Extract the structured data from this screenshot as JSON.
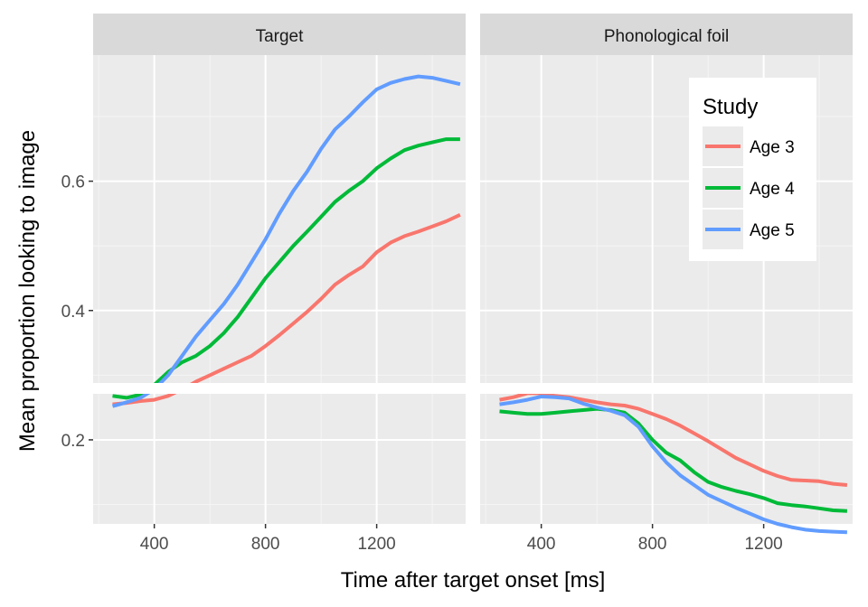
{
  "chart_data": {
    "type": "line",
    "xlabel": "Time after target onset [ms]",
    "ylabel": "Mean proportion looking to image",
    "xlim": [
      180,
      1520
    ],
    "ylim": [
      0.07,
      0.795
    ],
    "x_ticks": [
      400,
      800,
      1200
    ],
    "x_tick_labels": [
      "400",
      "800",
      "1200"
    ],
    "y_ticks": [
      0.2,
      0.4,
      0.6
    ],
    "y_tick_labels": [
      "0.2",
      "0.4",
      "0.6"
    ],
    "grid": true,
    "legend": {
      "title": "Study",
      "placement": "inside-top-right",
      "entries": [
        "Age 3",
        "Age 4",
        "Age 5"
      ]
    },
    "colors": {
      "Age 3": "#F8766D",
      "Age 4": "#00BA38",
      "Age 5": "#619CFF"
    },
    "panels": [
      {
        "title": "Target",
        "series": [
          {
            "name": "Age 3",
            "x": [
              250,
              300,
              350,
              400,
              450,
              500,
              550,
              600,
              650,
              700,
              750,
              800,
              850,
              900,
              950,
              1000,
              1050,
              1100,
              1150,
              1200,
              1250,
              1300,
              1350,
              1400,
              1450,
              1500
            ],
            "y": [
              0.255,
              0.257,
              0.26,
              0.262,
              0.268,
              0.278,
              0.29,
              0.3,
              0.31,
              0.32,
              0.33,
              0.345,
              0.362,
              0.38,
              0.398,
              0.418,
              0.44,
              0.455,
              0.468,
              0.49,
              0.505,
              0.515,
              0.522,
              0.53,
              0.538,
              0.548
            ]
          },
          {
            "name": "Age 4",
            "x": [
              250,
              300,
              350,
              400,
              450,
              500,
              550,
              600,
              650,
              700,
              750,
              800,
              850,
              900,
              950,
              1000,
              1050,
              1100,
              1150,
              1200,
              1250,
              1300,
              1350,
              1400,
              1450,
              1500
            ],
            "y": [
              0.268,
              0.265,
              0.27,
              0.285,
              0.305,
              0.32,
              0.33,
              0.345,
              0.365,
              0.39,
              0.42,
              0.45,
              0.475,
              0.5,
              0.522,
              0.545,
              0.568,
              0.585,
              0.6,
              0.62,
              0.635,
              0.648,
              0.655,
              0.66,
              0.665,
              0.665
            ]
          },
          {
            "name": "Age 5",
            "x": [
              250,
              300,
              350,
              400,
              450,
              500,
              550,
              600,
              650,
              700,
              750,
              800,
              850,
              900,
              950,
              1000,
              1050,
              1100,
              1150,
              1200,
              1250,
              1300,
              1350,
              1400,
              1450,
              1500
            ],
            "y": [
              0.252,
              0.258,
              0.265,
              0.278,
              0.3,
              0.33,
              0.36,
              0.385,
              0.41,
              0.44,
              0.475,
              0.51,
              0.55,
              0.585,
              0.615,
              0.65,
              0.68,
              0.7,
              0.722,
              0.742,
              0.752,
              0.758,
              0.762,
              0.76,
              0.755,
              0.75
            ]
          }
        ]
      },
      {
        "title": "Phonological foil",
        "series": [
          {
            "name": "Age 3",
            "x": [
              250,
              300,
              350,
              400,
              450,
              500,
              550,
              600,
              650,
              700,
              750,
              800,
              850,
              900,
              950,
              1000,
              1050,
              1100,
              1150,
              1200,
              1250,
              1300,
              1350,
              1400,
              1450,
              1500
            ],
            "y": [
              0.262,
              0.266,
              0.272,
              0.272,
              0.268,
              0.266,
              0.262,
              0.258,
              0.255,
              0.253,
              0.248,
              0.24,
              0.232,
              0.222,
              0.21,
              0.198,
              0.185,
              0.172,
              0.162,
              0.152,
              0.144,
              0.138,
              0.137,
              0.136,
              0.132,
              0.13
            ]
          },
          {
            "name": "Age 4",
            "x": [
              250,
              300,
              350,
              400,
              450,
              500,
              550,
              600,
              650,
              700,
              750,
              800,
              850,
              900,
              950,
              1000,
              1050,
              1100,
              1150,
              1200,
              1250,
              1300,
              1350,
              1400,
              1450,
              1500
            ],
            "y": [
              0.244,
              0.242,
              0.24,
              0.24,
              0.242,
              0.244,
              0.246,
              0.248,
              0.246,
              0.242,
              0.225,
              0.2,
              0.18,
              0.168,
              0.15,
              0.135,
              0.127,
              0.121,
              0.116,
              0.11,
              0.102,
              0.099,
              0.097,
              0.094,
              0.091,
              0.09
            ]
          },
          {
            "name": "Age 5",
            "x": [
              250,
              300,
              350,
              400,
              450,
              500,
              550,
              600,
              650,
              700,
              750,
              800,
              850,
              900,
              950,
              1000,
              1050,
              1100,
              1150,
              1200,
              1250,
              1300,
              1350,
              1400,
              1450,
              1500
            ],
            "y": [
              0.255,
              0.258,
              0.262,
              0.267,
              0.266,
              0.264,
              0.256,
              0.25,
              0.245,
              0.238,
              0.22,
              0.19,
              0.165,
              0.145,
              0.13,
              0.115,
              0.105,
              0.095,
              0.086,
              0.077,
              0.07,
              0.065,
              0.061,
              0.059,
              0.058,
              0.057
            ]
          }
        ]
      }
    ]
  }
}
